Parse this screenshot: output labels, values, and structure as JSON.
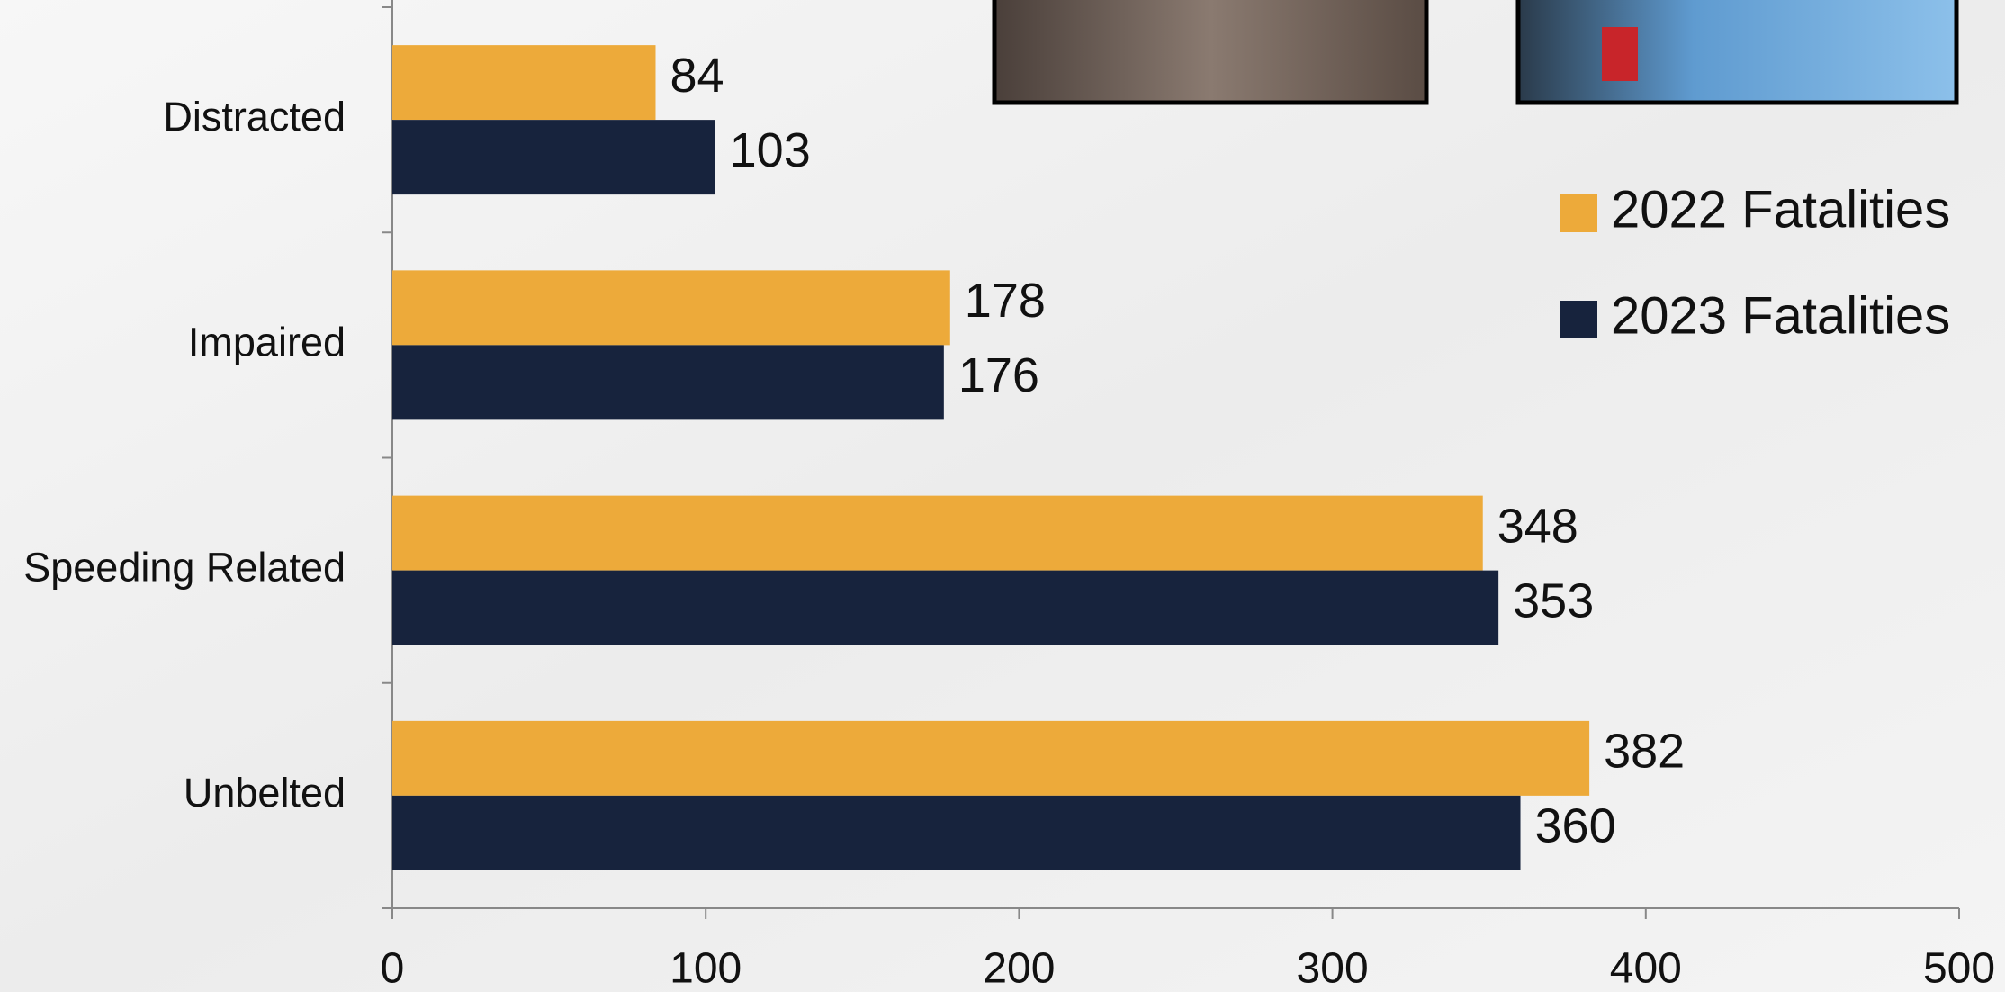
{
  "chart_data": {
    "type": "hbar",
    "categories": [
      "Distracted",
      "Impaired",
      "Speeding Related",
      "Unbelted"
    ],
    "series": [
      {
        "name": "2022 Fatalities",
        "color": "#edaa3a",
        "values": [
          84,
          178,
          348,
          382
        ]
      },
      {
        "name": "2023 Fatalities",
        "color": "#17233d",
        "values": [
          103,
          176,
          353,
          360
        ]
      }
    ],
    "xlim": [
      0,
      500
    ],
    "xticks": [
      0,
      100,
      200,
      300,
      400,
      500
    ],
    "grid": false,
    "legend": "right"
  }
}
